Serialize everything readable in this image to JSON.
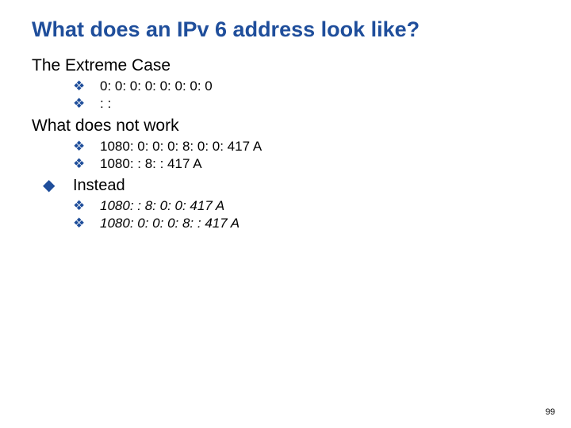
{
  "colors": {
    "title_color": "#1f4e9b",
    "bullet_color": "#1f4e9b",
    "text_color": "#000000",
    "background": "#ffffff"
  },
  "typography": {
    "title_fontsize": 27,
    "section_fontsize": 21,
    "bullet_fontsize": 17,
    "instead_fontsize": 20,
    "pagenum_fontsize": 11
  },
  "title": "What does an IPv 6 address look like?",
  "sections": {
    "extreme": {
      "heading": "The Extreme Case",
      "items": [
        "0: 0: 0: 0: 0: 0: 0: 0",
        ": :"
      ]
    },
    "notwork": {
      "heading": "What does not work",
      "items": [
        "1080: 0: 0: 0: 8: 0: 0: 417 A",
        "1080: : 8: : 417 A"
      ]
    },
    "instead": {
      "heading": "Instead",
      "items": [
        "1080: : 8: 0: 0: 417 A",
        "1080: 0: 0: 0: 8: : 417 A"
      ]
    }
  },
  "glyphs": {
    "diamond": "❖",
    "solid_diamond": "◆"
  },
  "page_number": "99"
}
